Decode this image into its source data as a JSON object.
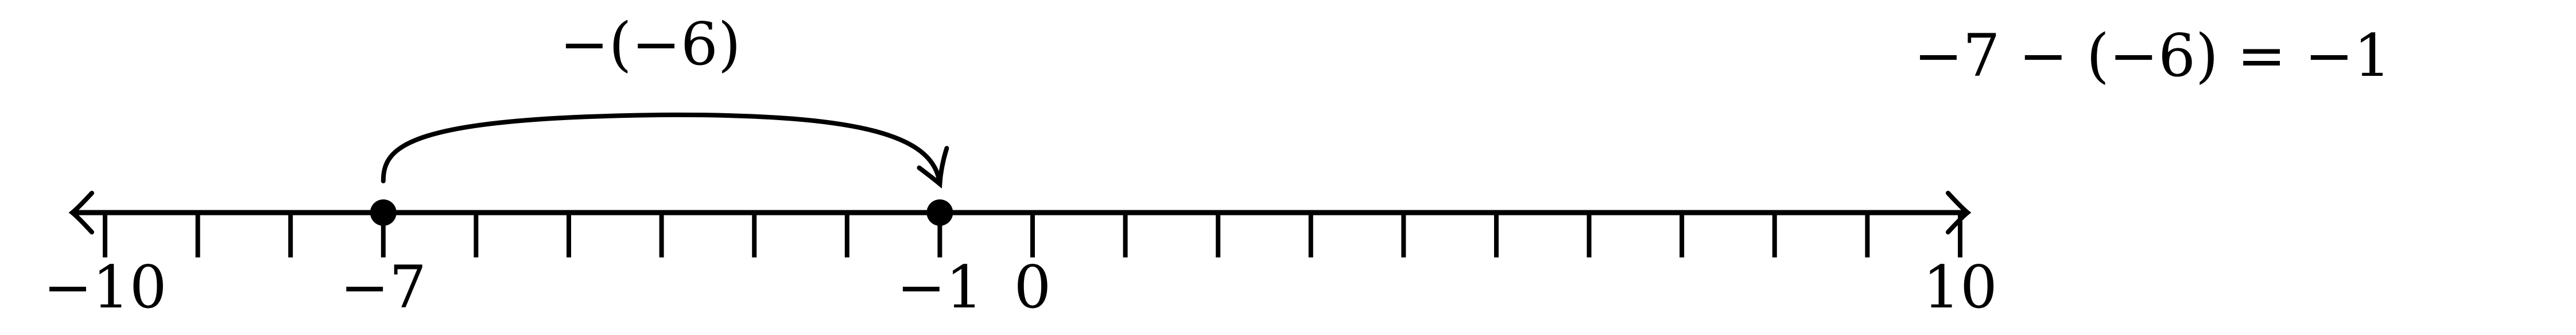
{
  "number_line": {
    "min": -10,
    "max": 10,
    "tick_step": 1,
    "tick_labels": [
      {
        "value": -10,
        "text": "−10"
      },
      {
        "value": -7,
        "text": "−7"
      },
      {
        "value": -1,
        "text": "−1"
      },
      {
        "value": 0,
        "text": "0"
      },
      {
        "value": 10,
        "text": "10"
      }
    ],
    "points": [
      {
        "value": -7
      },
      {
        "value": -1
      }
    ]
  },
  "jump": {
    "from": -7,
    "to": -1,
    "label": "−(−6)"
  },
  "equation": "−7 − (−6) = −1",
  "colors": {
    "ink": "#000000",
    "background": "#ffffff"
  }
}
